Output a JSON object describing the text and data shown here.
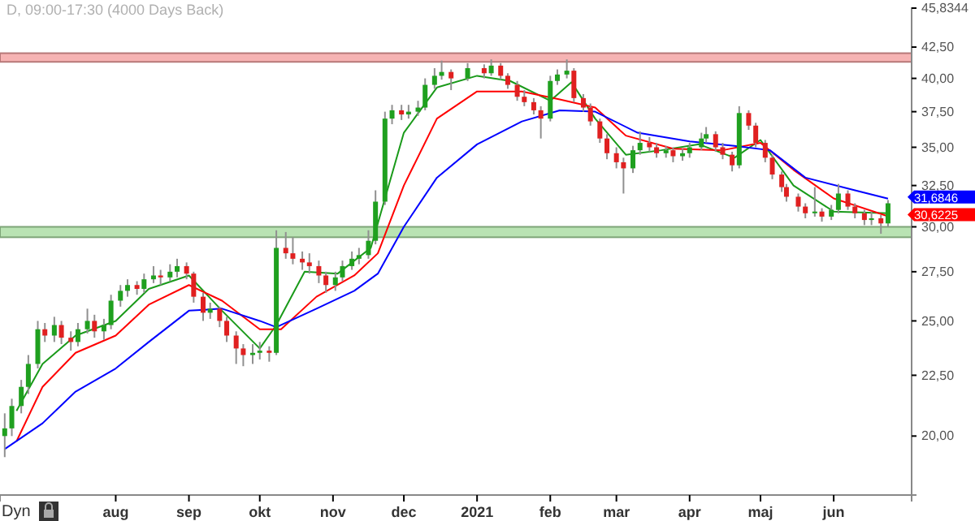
{
  "chart_data": {
    "type": "candlestick",
    "title": "D, 09:00-17:30 (4000 Days Back)",
    "x": [
      "2020-06-15",
      "2020-06-18",
      "2020-06-22",
      "2020-06-25",
      "2020-06-29",
      "2020-07-02",
      "2020-07-06",
      "2020-07-09",
      "2020-07-13",
      "2020-07-16",
      "2020-07-20",
      "2020-07-23",
      "2020-07-27",
      "2020-07-30",
      "2020-08-03",
      "2020-08-06",
      "2020-08-10",
      "2020-08-13",
      "2020-08-17",
      "2020-08-20",
      "2020-08-24",
      "2020-08-27",
      "2020-08-31",
      "2020-09-03",
      "2020-09-07",
      "2020-09-10",
      "2020-09-14",
      "2020-09-17",
      "2020-09-21",
      "2020-09-24",
      "2020-09-28",
      "2020-10-01",
      "2020-10-05",
      "2020-10-08",
      "2020-10-12",
      "2020-10-15",
      "2020-10-19",
      "2020-10-22",
      "2020-10-26",
      "2020-10-29",
      "2020-11-02",
      "2020-11-05",
      "2020-11-09",
      "2020-11-12",
      "2020-11-16",
      "2020-11-19",
      "2020-11-23",
      "2020-11-26",
      "2020-11-30",
      "2020-12-03",
      "2020-12-07",
      "2020-12-10",
      "2020-12-14",
      "2020-12-17",
      "2020-12-21",
      "2020-12-28",
      "2021-01-04",
      "2021-01-07",
      "2021-01-11",
      "2021-01-14",
      "2021-01-18",
      "2021-01-21",
      "2021-01-25",
      "2021-01-28",
      "2021-02-01",
      "2021-02-04",
      "2021-02-08",
      "2021-02-11",
      "2021-02-15",
      "2021-02-18",
      "2021-02-22",
      "2021-02-25",
      "2021-03-01",
      "2021-03-04",
      "2021-03-08",
      "2021-03-11",
      "2021-03-15",
      "2021-03-18",
      "2021-03-22",
      "2021-03-25",
      "2021-03-29",
      "2021-04-01",
      "2021-04-06",
      "2021-04-08",
      "2021-04-12",
      "2021-04-15",
      "2021-04-19",
      "2021-04-22",
      "2021-04-26",
      "2021-04-29",
      "2021-05-03",
      "2021-05-06",
      "2021-05-10",
      "2021-05-12",
      "2021-05-17",
      "2021-05-20",
      "2021-05-24",
      "2021-05-27",
      "2021-05-31",
      "2021-06-03",
      "2021-06-07",
      "2021-06-10",
      "2021-06-14",
      "2021-06-17",
      "2021-06-21",
      "2021-06-24"
    ],
    "ohlc": [
      [
        20.0,
        20.9,
        19.2,
        20.3
      ],
      [
        20.3,
        21.5,
        20.0,
        21.2
      ],
      [
        21.2,
        22.3,
        20.9,
        22.0
      ],
      [
        22.0,
        23.4,
        21.7,
        23.0
      ],
      [
        23.0,
        25.0,
        22.8,
        24.6
      ],
      [
        24.6,
        24.9,
        24.0,
        24.3
      ],
      [
        24.3,
        25.2,
        24.0,
        24.8
      ],
      [
        24.8,
        25.0,
        23.9,
        24.2
      ],
      [
        24.2,
        24.5,
        23.6,
        24.0
      ],
      [
        24.0,
        24.9,
        23.8,
        24.6
      ],
      [
        24.6,
        25.6,
        24.4,
        25.0
      ],
      [
        25.0,
        25.3,
        24.2,
        24.5
      ],
      [
        24.5,
        25.1,
        24.1,
        24.8
      ],
      [
        24.8,
        26.3,
        24.6,
        26.0
      ],
      [
        26.0,
        26.8,
        25.7,
        26.5
      ],
      [
        26.5,
        27.1,
        26.2,
        26.8
      ],
      [
        26.8,
        27.0,
        26.3,
        26.6
      ],
      [
        26.6,
        27.4,
        26.4,
        27.1
      ],
      [
        27.1,
        27.8,
        26.9,
        27.3
      ],
      [
        27.3,
        27.6,
        26.8,
        27.2
      ],
      [
        27.2,
        27.9,
        27.0,
        27.5
      ],
      [
        27.5,
        28.2,
        27.2,
        27.8
      ],
      [
        27.8,
        28.0,
        27.1,
        27.4
      ],
      [
        27.4,
        27.5,
        25.9,
        26.2
      ],
      [
        26.2,
        26.4,
        25.0,
        25.4
      ],
      [
        25.4,
        25.9,
        25.1,
        25.6
      ],
      [
        25.6,
        25.7,
        24.7,
        25.0
      ],
      [
        25.0,
        25.2,
        24.0,
        24.3
      ],
      [
        24.3,
        24.5,
        23.0,
        23.7
      ],
      [
        23.7,
        23.9,
        22.9,
        23.4
      ],
      [
        23.4,
        23.9,
        23.0,
        23.5
      ],
      [
        23.5,
        24.0,
        23.2,
        23.6
      ],
      [
        23.6,
        23.8,
        23.1,
        23.5
      ],
      [
        23.5,
        29.8,
        23.4,
        28.8
      ],
      [
        28.8,
        29.7,
        28.2,
        28.5
      ],
      [
        28.5,
        29.4,
        27.9,
        28.2
      ],
      [
        28.2,
        28.6,
        27.6,
        28.0
      ],
      [
        28.0,
        28.5,
        27.4,
        27.8
      ],
      [
        27.8,
        28.1,
        26.9,
        27.3
      ],
      [
        27.3,
        27.5,
        26.4,
        26.8
      ],
      [
        26.8,
        27.5,
        26.5,
        27.2
      ],
      [
        27.2,
        28.1,
        27.0,
        27.8
      ],
      [
        27.8,
        28.6,
        27.6,
        28.2
      ],
      [
        28.2,
        28.8,
        27.9,
        28.4
      ],
      [
        28.4,
        29.8,
        28.2,
        29.2
      ],
      [
        29.2,
        32.2,
        29.0,
        31.5
      ],
      [
        31.5,
        37.5,
        31.3,
        37.0
      ],
      [
        37.0,
        38.0,
        36.6,
        37.6
      ],
      [
        37.6,
        38.0,
        36.9,
        37.3
      ],
      [
        37.3,
        38.0,
        37.0,
        37.5
      ],
      [
        37.5,
        38.3,
        37.2,
        37.8
      ],
      [
        37.8,
        40.0,
        37.6,
        39.5
      ],
      [
        39.5,
        40.8,
        39.2,
        40.2
      ],
      [
        40.2,
        41.4,
        39.9,
        40.5
      ],
      [
        40.5,
        40.7,
        39.1,
        40.0
      ],
      [
        40.0,
        41.2,
        39.8,
        40.8
      ],
      [
        40.8,
        41.1,
        40.0,
        40.4
      ],
      [
        40.4,
        41.5,
        40.2,
        41.0
      ],
      [
        41.0,
        41.2,
        39.9,
        40.2
      ],
      [
        40.2,
        40.4,
        39.2,
        39.5
      ],
      [
        39.5,
        39.8,
        38.3,
        38.6
      ],
      [
        38.6,
        39.1,
        37.9,
        38.2
      ],
      [
        38.2,
        38.5,
        37.3,
        37.6
      ],
      [
        37.6,
        37.9,
        35.6,
        37.0
      ],
      [
        37.0,
        40.2,
        36.8,
        39.8
      ],
      [
        39.8,
        40.7,
        39.5,
        40.3
      ],
      [
        40.3,
        41.5,
        40.0,
        40.6
      ],
      [
        40.6,
        40.8,
        38.2,
        38.5
      ],
      [
        38.5,
        38.8,
        37.5,
        37.8
      ],
      [
        37.8,
        38.1,
        36.5,
        36.8
      ],
      [
        36.8,
        37.0,
        35.3,
        35.6
      ],
      [
        35.6,
        35.9,
        34.2,
        34.6
      ],
      [
        34.6,
        35.0,
        33.6,
        34.0
      ],
      [
        34.0,
        34.3,
        32.0,
        33.6
      ],
      [
        33.6,
        35.1,
        33.3,
        34.8
      ],
      [
        34.8,
        36.1,
        34.5,
        35.3
      ],
      [
        35.3,
        35.7,
        34.7,
        35.0
      ],
      [
        35.0,
        35.3,
        34.3,
        34.6
      ],
      [
        34.6,
        35.1,
        34.3,
        34.8
      ],
      [
        34.8,
        35.0,
        34.0,
        34.4
      ],
      [
        34.4,
        34.9,
        34.1,
        34.6
      ],
      [
        34.6,
        35.3,
        34.3,
        35.0
      ],
      [
        35.0,
        36.0,
        34.8,
        35.6
      ],
      [
        35.6,
        36.4,
        35.3,
        35.9
      ],
      [
        35.9,
        36.1,
        34.7,
        35.0
      ],
      [
        35.0,
        35.3,
        34.2,
        34.5
      ],
      [
        34.5,
        34.7,
        33.4,
        33.8
      ],
      [
        33.8,
        37.9,
        33.6,
        37.4
      ],
      [
        37.4,
        37.6,
        36.2,
        36.5
      ],
      [
        36.5,
        36.7,
        35.0,
        35.3
      ],
      [
        35.3,
        35.5,
        34.0,
        34.3
      ],
      [
        34.3,
        34.5,
        32.9,
        33.2
      ],
      [
        33.2,
        33.4,
        32.1,
        32.4
      ],
      [
        32.4,
        32.6,
        31.5,
        31.8
      ],
      [
        31.8,
        32.0,
        30.9,
        31.2
      ],
      [
        31.2,
        31.4,
        30.5,
        30.8
      ],
      [
        30.8,
        32.4,
        30.6,
        30.9
      ],
      [
        30.9,
        31.1,
        30.3,
        30.6
      ],
      [
        30.6,
        31.3,
        30.4,
        31.0
      ],
      [
        31.0,
        32.6,
        30.8,
        32.0
      ],
      [
        32.0,
        32.2,
        31.0,
        31.2
      ],
      [
        31.2,
        31.4,
        30.5,
        30.8
      ],
      [
        30.8,
        31.0,
        30.1,
        30.4
      ],
      [
        30.4,
        30.9,
        30.1,
        30.5
      ],
      [
        30.5,
        30.7,
        29.6,
        30.2
      ],
      [
        30.2,
        31.6,
        30.0,
        31.4
      ]
    ],
    "colors": [
      "#1fa01f",
      "#1fa01f",
      "#1fa01f",
      "#1fa01f",
      "#1fa01f",
      "#e02020",
      "#1fa01f",
      "#e02020",
      "#e02020",
      "#1fa01f",
      "#1fa01f",
      "#e02020",
      "#1fa01f",
      "#1fa01f",
      "#1fa01f",
      "#1fa01f",
      "#e02020",
      "#1fa01f",
      "#1fa01f",
      "#e02020",
      "#1fa01f",
      "#1fa01f",
      "#e02020",
      "#e02020",
      "#e02020",
      "#1fa01f",
      "#e02020",
      "#e02020",
      "#e02020",
      "#e02020",
      "#1fa01f",
      "#1fa01f",
      "#e02020",
      "#1fa01f",
      "#e02020",
      "#e02020",
      "#e02020",
      "#e02020",
      "#e02020",
      "#e02020",
      "#1fa01f",
      "#1fa01f",
      "#1fa01f",
      "#1fa01f",
      "#1fa01f",
      "#1fa01f",
      "#1fa01f",
      "#1fa01f",
      "#e02020",
      "#1fa01f",
      "#1fa01f",
      "#1fa01f",
      "#1fa01f",
      "#1fa01f",
      "#e02020",
      "#1fa01f",
      "#e02020",
      "#1fa01f",
      "#e02020",
      "#e02020",
      "#e02020",
      "#e02020",
      "#e02020",
      "#e02020",
      "#1fa01f",
      "#1fa01f",
      "#1fa01f",
      "#e02020",
      "#e02020",
      "#e02020",
      "#e02020",
      "#e02020",
      "#e02020",
      "#e02020",
      "#1fa01f",
      "#1fa01f",
      "#e02020",
      "#e02020",
      "#1fa01f",
      "#e02020",
      "#1fa01f",
      "#1fa01f",
      "#1fa01f",
      "#1fa01f",
      "#e02020",
      "#e02020",
      "#e02020",
      "#1fa01f",
      "#e02020",
      "#e02020",
      "#e02020",
      "#e02020",
      "#e02020",
      "#e02020",
      "#e02020",
      "#e02020",
      "#1fa01f",
      "#e02020",
      "#1fa01f",
      "#1fa01f",
      "#e02020",
      "#e02020",
      "#e02020",
      "#1fa01f",
      "#e02020",
      "#1fa01f"
    ],
    "series": [
      {
        "type": "line",
        "color": "#1a9a1a",
        "x": [
          "2020-06-20",
          "2020-07-01",
          "2020-07-15",
          "2020-08-01",
          "2020-08-15",
          "2020-09-01",
          "2020-09-15",
          "2020-10-01",
          "2020-10-08",
          "2020-10-20",
          "2020-11-03",
          "2020-11-17",
          "2020-12-01",
          "2020-12-15",
          "2021-01-01",
          "2021-01-15",
          "2021-02-01",
          "2021-02-10",
          "2021-02-20",
          "2021-03-05",
          "2021-03-20",
          "2021-04-05",
          "2021-04-20",
          "2021-05-01",
          "2021-05-15",
          "2021-06-01",
          "2021-06-24"
        ],
        "values": [
          21.0,
          23.0,
          24.3,
          25.0,
          26.6,
          27.3,
          25.5,
          23.7,
          24.8,
          27.5,
          27.4,
          28.8,
          36.0,
          39.3,
          40.2,
          39.8,
          38.3,
          39.7,
          37.0,
          34.5,
          34.8,
          35.2,
          34.3,
          35.5,
          32.5,
          30.9,
          30.8
        ]
      },
      {
        "type": "line",
        "color": "#ff0000",
        "x": [
          "2020-06-20",
          "2020-07-01",
          "2020-07-15",
          "2020-08-01",
          "2020-08-15",
          "2020-09-01",
          "2020-09-15",
          "2020-10-01",
          "2020-10-10",
          "2020-10-25",
          "2020-11-10",
          "2020-11-20",
          "2020-12-01",
          "2020-12-15",
          "2021-01-01",
          "2021-01-20",
          "2021-02-05",
          "2021-02-20",
          "2021-03-05",
          "2021-03-25",
          "2021-04-15",
          "2021-05-01",
          "2021-05-15",
          "2021-06-01",
          "2021-06-24"
        ],
        "values": [
          19.8,
          22.0,
          23.5,
          24.3,
          25.8,
          26.8,
          26.0,
          24.6,
          24.6,
          26.2,
          27.3,
          28.5,
          32.5,
          37.0,
          39.0,
          39.0,
          38.4,
          37.8,
          35.8,
          34.9,
          34.8,
          35.3,
          33.5,
          31.7,
          30.6225
        ]
      },
      {
        "type": "line",
        "color": "#0000ff",
        "x": [
          "2020-06-15",
          "2020-07-01",
          "2020-07-15",
          "2020-08-01",
          "2020-08-15",
          "2020-09-01",
          "2020-09-15",
          "2020-10-01",
          "2020-10-08",
          "2020-10-25",
          "2020-11-10",
          "2020-11-20",
          "2020-12-01",
          "2020-12-15",
          "2021-01-01",
          "2021-01-20",
          "2021-02-05",
          "2021-02-20",
          "2021-03-10",
          "2021-04-01",
          "2021-04-20",
          "2021-05-05",
          "2021-05-20",
          "2021-06-10",
          "2021-06-24"
        ],
        "values": [
          19.5,
          20.5,
          21.8,
          22.8,
          24.0,
          25.5,
          25.6,
          25.0,
          24.7,
          25.6,
          26.5,
          27.4,
          30.0,
          33.0,
          35.2,
          36.8,
          37.6,
          37.5,
          36.0,
          35.4,
          35.1,
          34.8,
          33.0,
          32.2,
          31.6846
        ]
      }
    ],
    "xlim": [
      "2020-06-13",
      "2021-07-04"
    ],
    "xticks": [
      {
        "value": "2020-08-01",
        "label": "aug"
      },
      {
        "value": "2020-09-01",
        "label": "sep"
      },
      {
        "value": "2020-10-01",
        "label": "okt"
      },
      {
        "value": "2020-11-01",
        "label": "nov"
      },
      {
        "value": "2020-12-01",
        "label": "dec"
      },
      {
        "value": "2021-01-01",
        "label": "2021"
      },
      {
        "value": "2021-02-01",
        "label": "feb"
      },
      {
        "value": "2021-03-01",
        "label": "mar"
      },
      {
        "value": "2021-04-01",
        "label": "apr"
      },
      {
        "value": "2021-05-01",
        "label": "maj"
      },
      {
        "value": "2021-06-01",
        "label": "jun"
      }
    ],
    "ylim": [
      17.84,
      45.8344
    ],
    "log": true,
    "yticks": [
      {
        "value": 20,
        "label": "20,00"
      },
      {
        "value": 22.5,
        "label": "22,50"
      },
      {
        "value": 25,
        "label": "25,00"
      },
      {
        "value": 27.5,
        "label": "27,50"
      },
      {
        "value": 30,
        "label": "30,00"
      },
      {
        "value": 32.5,
        "label": "32,50"
      },
      {
        "value": 35,
        "label": "35,00"
      },
      {
        "value": 37.5,
        "label": "37,50"
      },
      {
        "value": 40,
        "label": "40,00"
      },
      {
        "value": 42.5,
        "label": "42,50"
      },
      {
        "value": 45.8344,
        "label": "45,8344"
      }
    ],
    "bands": [
      {
        "axis": "y",
        "from": 41.3,
        "to": 42.0,
        "color": "#f4a0a0"
      },
      {
        "axis": "y",
        "from": 29.4,
        "to": 30.0,
        "color": "#a8dca0"
      }
    ],
    "annotations": [
      {
        "text": "31,6846",
        "x": "2021-06-24",
        "y": 31.6846
      },
      {
        "text": "30,6225",
        "x": "2021-06-24",
        "y": 30.6225
      },
      "Dyn"
    ]
  }
}
